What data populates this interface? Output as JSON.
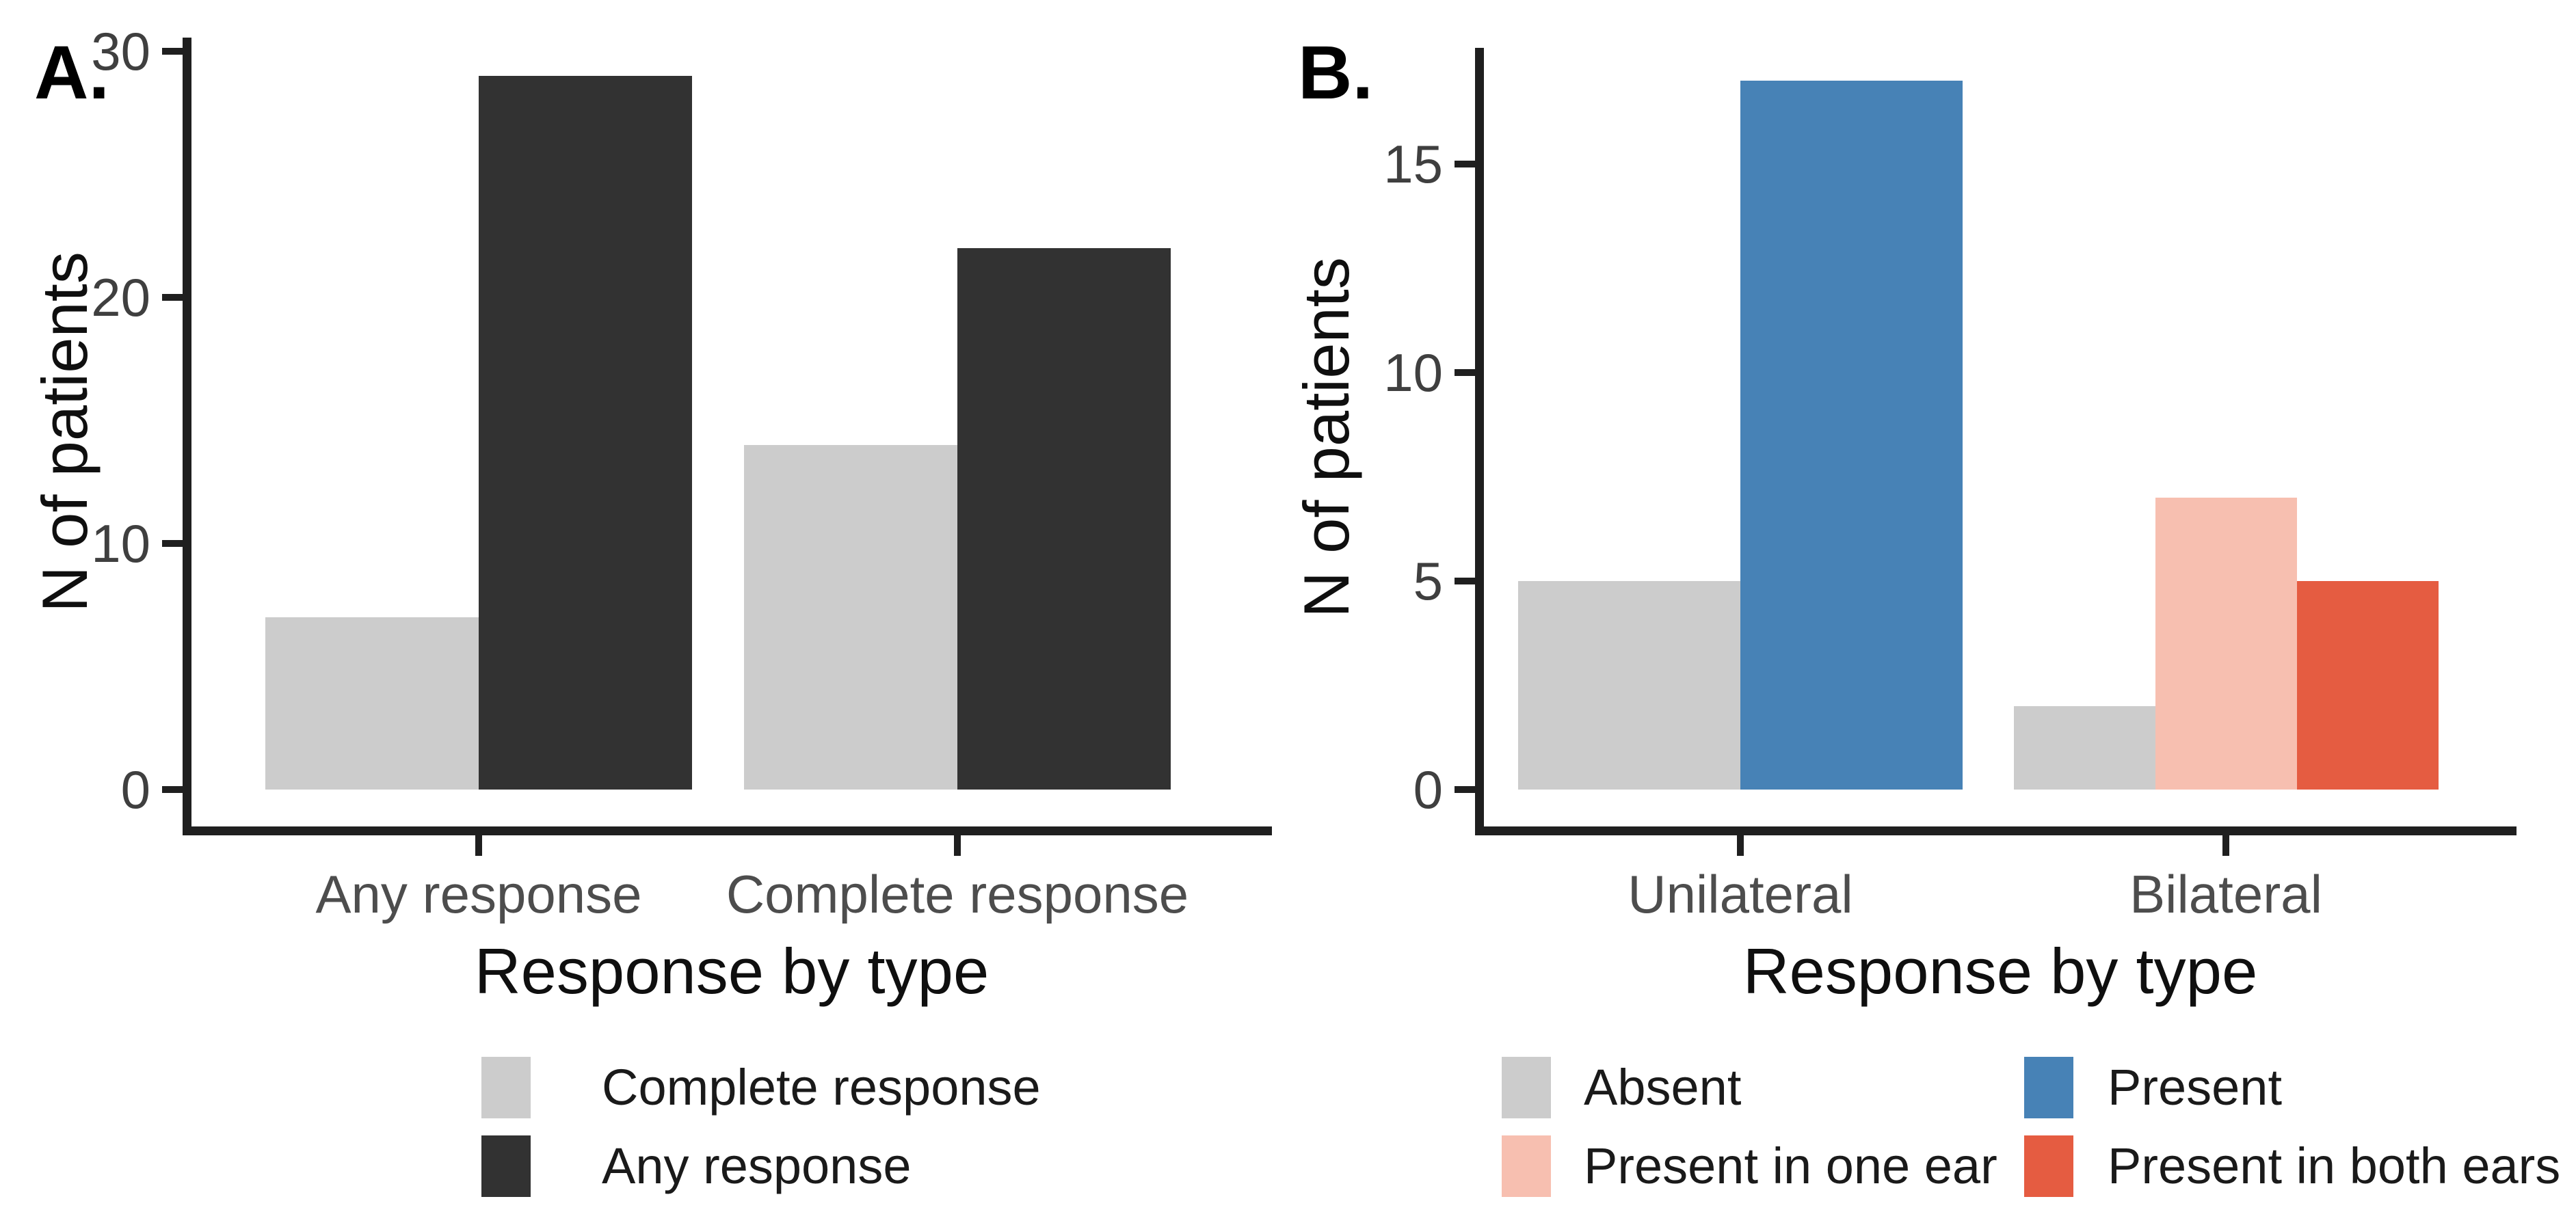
{
  "figure_title": "",
  "chart_data": [
    {
      "type": "bar",
      "panel_label": "A.",
      "xlabel": "Response by type",
      "ylabel": "N of patients",
      "categories": [
        "Any response",
        "Complete response"
      ],
      "series": [
        {
          "name": "Complete response",
          "color": "#cccccc",
          "values": [
            7,
            14
          ]
        },
        {
          "name": "Any response",
          "color": "#323232",
          "values": [
            29,
            22
          ]
        }
      ],
      "yticks": [
        0,
        10,
        20,
        30
      ],
      "ylim": [
        0,
        30
      ],
      "grid": "off",
      "legend_position": "bottom",
      "legend": [
        {
          "label": "Complete response",
          "color": "#cccccc"
        },
        {
          "label": "Any response",
          "color": "#323232"
        }
      ]
    },
    {
      "type": "bar",
      "panel_label": "B.",
      "xlabel": "Response by type",
      "ylabel": "N of patients",
      "categories": [
        "Unilateral",
        "Bilateral"
      ],
      "series": [
        {
          "name": "Absent",
          "color": "#cccccc",
          "values": [
            5,
            2
          ]
        },
        {
          "name": "Present",
          "color": "#4782b6",
          "values": [
            17,
            null
          ]
        },
        {
          "name": "Present in one ear",
          "color": "#f7bfb0",
          "values": [
            null,
            7
          ]
        },
        {
          "name": "Present in both ears",
          "color": "#e55c41",
          "values": [
            null,
            5
          ]
        }
      ],
      "yticks": [
        0,
        5,
        10,
        15
      ],
      "ylim": [
        0,
        17
      ],
      "grid": "off",
      "legend_position": "bottom",
      "legend": [
        {
          "label": "Absent",
          "color": "#cccccc"
        },
        {
          "label": "Present",
          "color": "#4782b6"
        },
        {
          "label": "Present in one ear",
          "color": "#f7bfb0"
        },
        {
          "label": "Present in both ears",
          "color": "#e55c41"
        }
      ]
    }
  ]
}
